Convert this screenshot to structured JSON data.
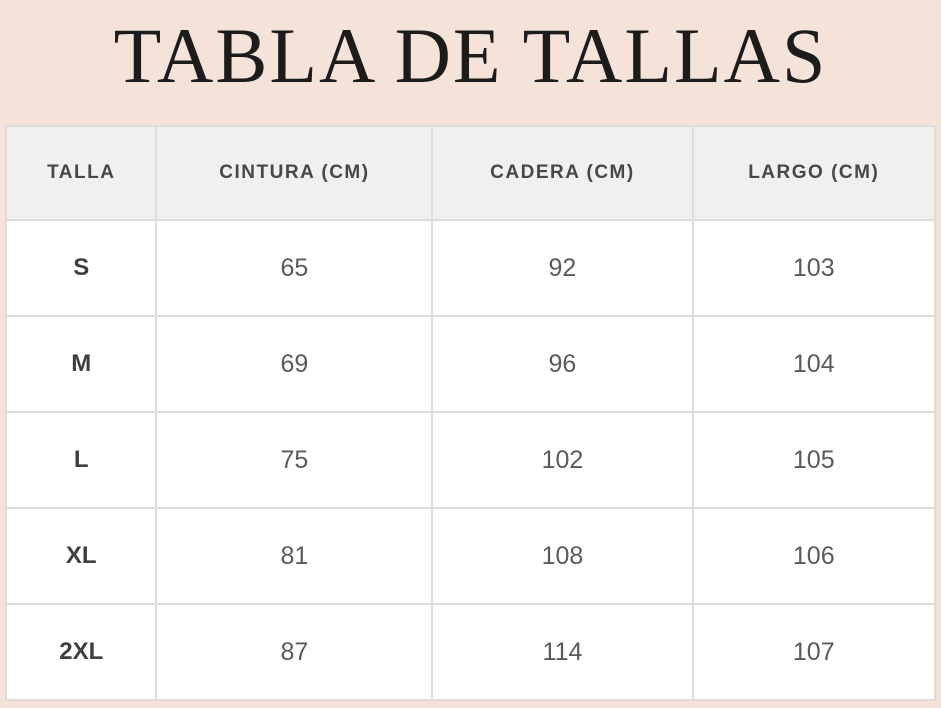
{
  "page": {
    "title": "TABLA DE TALLAS"
  },
  "colors": {
    "background": "#f5e2d9",
    "header_cell_background": "#f0f0ef",
    "cell_background": "#ffffff",
    "border": "#dcdcdc",
    "title_text": "#1c1c1c",
    "header_text": "#474747",
    "cell_text": "#5a5a5a"
  },
  "table": {
    "headers": [
      "TALLA",
      "CINTURA (CM)",
      "CADERA (CM)",
      "LARGO (CM)"
    ],
    "rows": [
      [
        "S",
        "65",
        "92",
        "103"
      ],
      [
        "M",
        "69",
        "96",
        "104"
      ],
      [
        "L",
        "75",
        "102",
        "105"
      ],
      [
        "XL",
        "81",
        "108",
        "106"
      ],
      [
        "2XL",
        "87",
        "114",
        "107"
      ]
    ]
  },
  "chart_data": {
    "type": "table",
    "title": "TABLA DE TALLAS",
    "columns": [
      "TALLA",
      "CINTURA (CM)",
      "CADERA (CM)",
      "LARGO (CM)"
    ],
    "rows": [
      {
        "talla": "S",
        "cintura_cm": 65,
        "cadera_cm": 92,
        "largo_cm": 103
      },
      {
        "talla": "M",
        "cintura_cm": 69,
        "cadera_cm": 96,
        "largo_cm": 104
      },
      {
        "talla": "L",
        "cintura_cm": 75,
        "cadera_cm": 102,
        "largo_cm": 105
      },
      {
        "talla": "XL",
        "cintura_cm": 81,
        "cadera_cm": 108,
        "largo_cm": 106
      },
      {
        "talla": "2XL",
        "cintura_cm": 87,
        "cadera_cm": 114,
        "largo_cm": 107
      }
    ]
  }
}
